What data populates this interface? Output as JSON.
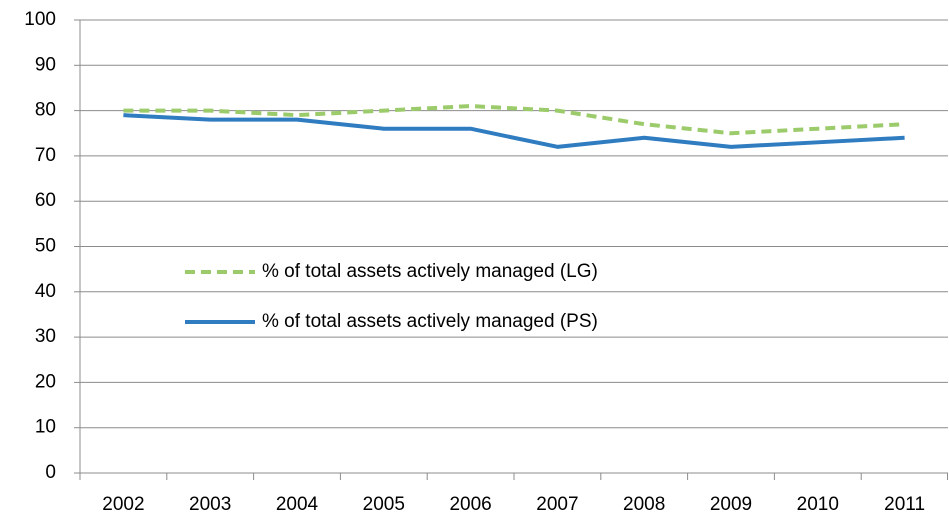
{
  "chart_data": {
    "type": "line",
    "categories": [
      "2002",
      "2003",
      "2004",
      "2005",
      "2006",
      "2007",
      "2008",
      "2009",
      "2010",
      "2011"
    ],
    "series": [
      {
        "name": "% of total assets actively managed (LG)",
        "color": "#9bcb6a",
        "dashed": true,
        "values": [
          80,
          80,
          79,
          80,
          81,
          80,
          77,
          75,
          76,
          77
        ]
      },
      {
        "name": "% of total assets actively managed (PS)",
        "color": "#2f7cc1",
        "dashed": false,
        "values": [
          79,
          78,
          78,
          76,
          76,
          72,
          74,
          72,
          73,
          74
        ]
      }
    ],
    "ylim": [
      0,
      100
    ],
    "yticks": [
      0,
      10,
      20,
      30,
      40,
      50,
      60,
      70,
      80,
      90,
      100
    ],
    "grid": true
  }
}
